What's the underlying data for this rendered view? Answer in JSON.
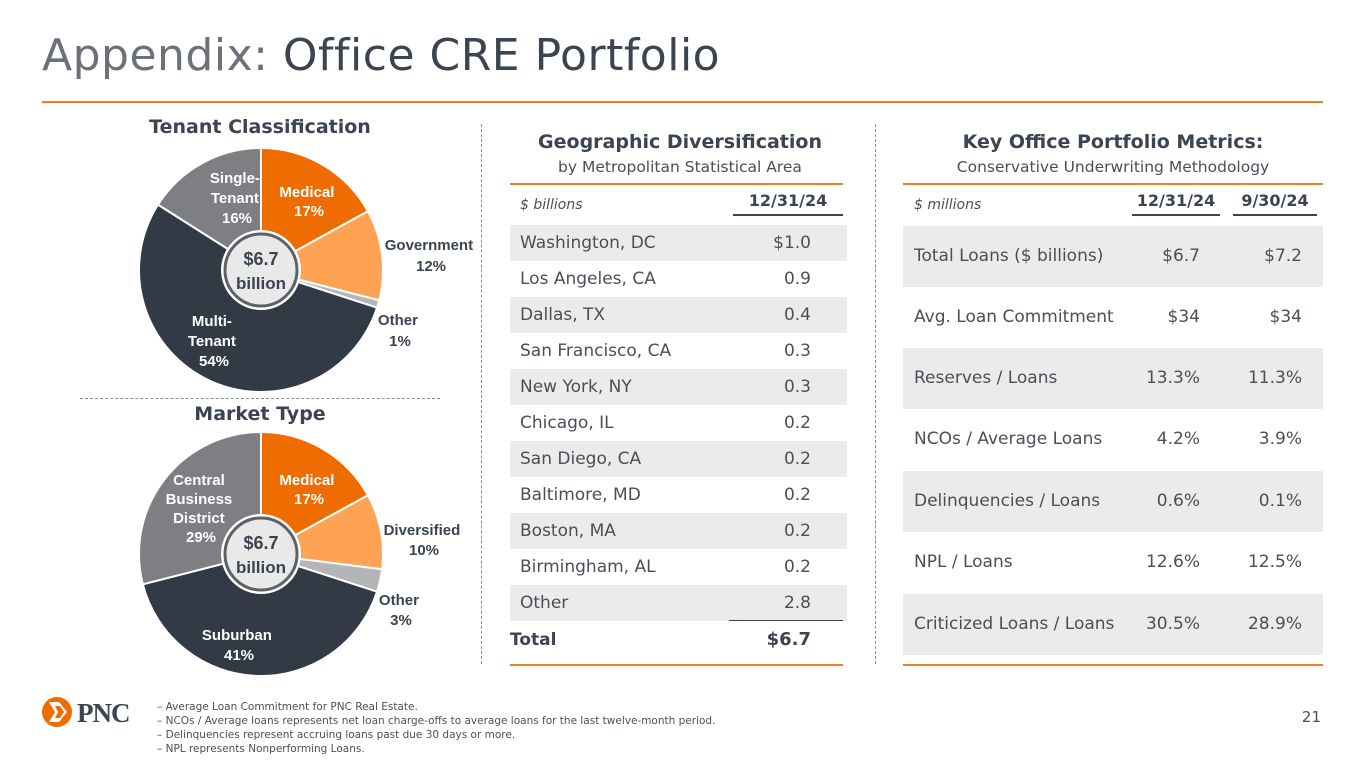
{
  "title": {
    "part1": "Appendix:",
    "part2": " Office CRE Portfolio"
  },
  "colors": {
    "orange": "#ef7d22",
    "light_orange": "#ffa352",
    "slate": "#313a45",
    "gray": "#7d7f83",
    "light_gray": "#b3b5b8"
  },
  "tenant_chart": {
    "title": "Tenant Classification",
    "center": {
      "line1": "$6.7",
      "line2": "billion"
    },
    "slices": [
      {
        "name": "Medical",
        "pct": "17%",
        "value": 17,
        "color": "#ef6c00"
      },
      {
        "name": "Government",
        "pct": "12%",
        "value": 12,
        "color": "#ffa352"
      },
      {
        "name": "Other",
        "pct": "1%",
        "value": 1,
        "color": "#b3b5b8"
      },
      {
        "name": "Multi-Tenant",
        "pct": "54%",
        "value": 54,
        "color": "#313a45"
      },
      {
        "name": "Single-Tenant",
        "pct": "16%",
        "value": 16,
        "color": "#7d7f83"
      }
    ],
    "labels": {
      "medical": {
        "l1": "Medical",
        "l2": "17%"
      },
      "government": {
        "l1": "Government",
        "l2": "12%"
      },
      "other": {
        "l1": "Other",
        "l2": "1%"
      },
      "multi": {
        "l1": "Multi-",
        "l2": "Tenant",
        "l3": "54%"
      },
      "single": {
        "l1": "Single-",
        "l2": "Tenant",
        "l3": "16%"
      }
    }
  },
  "market_chart": {
    "title": "Market Type",
    "center": {
      "line1": "$6.7",
      "line2": "billion"
    },
    "slices": [
      {
        "name": "Medical",
        "pct": "17%",
        "value": 17,
        "color": "#ef6c00"
      },
      {
        "name": "Diversified",
        "pct": "10%",
        "value": 10,
        "color": "#ffa352"
      },
      {
        "name": "Other",
        "pct": "3%",
        "value": 3,
        "color": "#b3b5b8"
      },
      {
        "name": "Suburban",
        "pct": "41%",
        "value": 41,
        "color": "#313a45"
      },
      {
        "name": "Central Business District",
        "pct": "29%",
        "value": 29,
        "color": "#7d7f83"
      }
    ],
    "labels": {
      "medical": {
        "l1": "Medical",
        "l2": "17%"
      },
      "diversified": {
        "l1": "Diversified",
        "l2": "10%"
      },
      "other": {
        "l1": "Other",
        "l2": "3%"
      },
      "suburban": {
        "l1": "Suburban",
        "l2": "41%"
      },
      "cbd": {
        "l1": "Central",
        "l2": "Business",
        "l3": "District",
        "l4": "29%"
      }
    }
  },
  "geo": {
    "title": "Geographic Diversification",
    "subtitle": "by Metropolitan Statistical Area",
    "units": "$ billions",
    "col": "12/31/24",
    "rows": [
      {
        "name": "Washington, DC",
        "value": "$1.0"
      },
      {
        "name": "Los Angeles, CA",
        "value": "0.9"
      },
      {
        "name": "Dallas, TX",
        "value": "0.4"
      },
      {
        "name": "San Francisco, CA",
        "value": "0.3"
      },
      {
        "name": "New York, NY",
        "value": "0.3"
      },
      {
        "name": "Chicago, IL",
        "value": "0.2"
      },
      {
        "name": "San Diego, CA",
        "value": "0.2"
      },
      {
        "name": "Baltimore, MD",
        "value": "0.2"
      },
      {
        "name": "Boston, MA",
        "value": "0.2"
      },
      {
        "name": "Birmingham, AL",
        "value": "0.2"
      },
      {
        "name": "Other",
        "value": "2.8"
      }
    ],
    "total_label": "Total",
    "total_value": "$6.7"
  },
  "metrics": {
    "title": "Key Office Portfolio Metrics:",
    "subtitle": "Conservative Underwriting Methodology",
    "units": "$ millions",
    "col1": "12/31/24",
    "col2": "9/30/24",
    "rows": [
      {
        "name": "Total Loans ($ billions)",
        "v1": "$6.7",
        "v2": "$7.2"
      },
      {
        "name": "Avg. Loan Commitment",
        "v1": "$34",
        "v2": "$34"
      },
      {
        "name": "Reserves / Loans",
        "v1": "13.3%",
        "v2": "11.3%"
      },
      {
        "name": "NCOs / Average Loans",
        "v1": "4.2%",
        "v2": "3.9%"
      },
      {
        "name": "Delinquencies / Loans",
        "v1": "0.6%",
        "v2": "0.1%"
      },
      {
        "name": "NPL / Loans",
        "v1": "12.6%",
        "v2": "12.5%"
      },
      {
        "name": "Criticized Loans / Loans",
        "v1": "30.5%",
        "v2": "28.9%"
      }
    ]
  },
  "footnotes": [
    "Average Loan Commitment for PNC Real Estate.",
    "NCOs / Average loans represents net loan charge-offs to average loans for the last twelve-month period.",
    "Delinquencies represent accruing loans past due 30 days or more.",
    "NPL represents Nonperforming Loans."
  ],
  "logo": {
    "text": "PNC"
  },
  "page_number": "21"
}
